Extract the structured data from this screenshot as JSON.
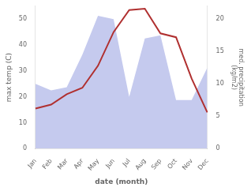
{
  "chart_data": {
    "type": "line",
    "categories": [
      "Jan",
      "Feb",
      "Mar",
      "Apr",
      "May",
      "Jun",
      "Jul",
      "Aug",
      "Sep",
      "Oct",
      "Nov",
      "Dec"
    ],
    "series": [
      {
        "type": "area",
        "color": "#c5caee",
        "axis": "y2",
        "values": [
          10.0,
          9.0,
          9.5,
          14.5,
          20.5,
          20.0,
          8.0,
          17.0,
          17.5,
          7.5,
          7.5,
          12.5
        ]
      },
      {
        "type": "line",
        "color": "#b03030",
        "values": [
          15.5,
          17.0,
          21.0,
          23.5,
          32.0,
          45.0,
          53.5,
          54.0,
          44.5,
          43.0,
          27.0,
          14.0
        ]
      }
    ],
    "x_label": "date (month)",
    "y_label": "max temp (C)",
    "y2_label": "med. precipitation\n(kg/m2)",
    "ylim": [
      0,
      55
    ],
    "yticks": [
      0,
      10,
      20,
      30,
      40,
      50
    ],
    "y2lim": [
      0,
      22
    ],
    "y2ticks": [
      0,
      5,
      10,
      15,
      20
    ],
    "grid": false
  }
}
